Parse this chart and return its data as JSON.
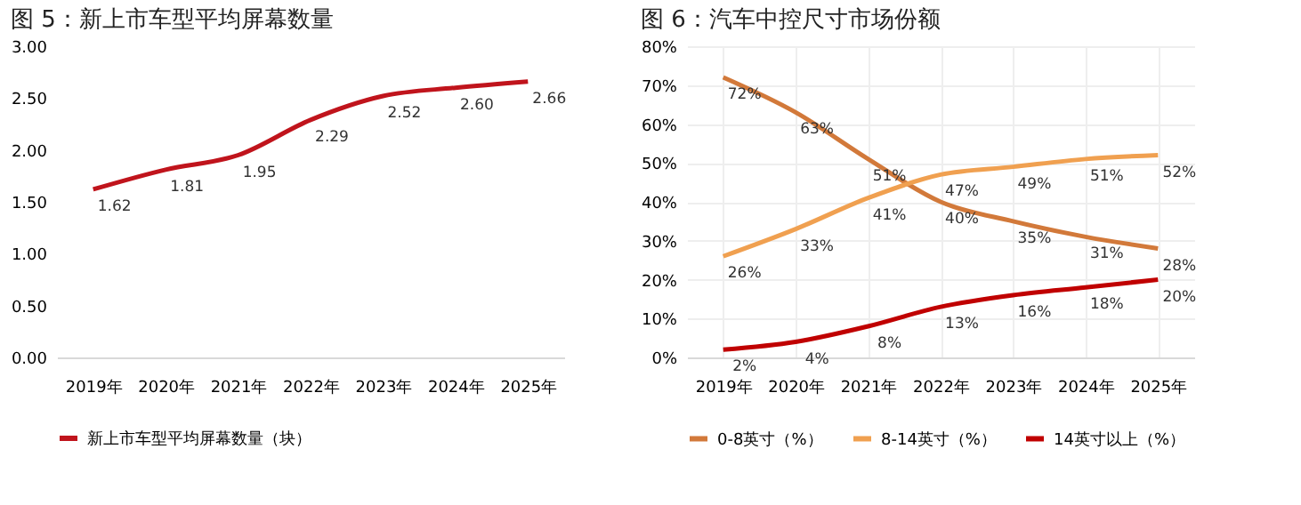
{
  "chart_data": [
    {
      "type": "line",
      "title": "图 5：新上市车型平均屏幕数量",
      "categories": [
        "2019年",
        "2020年",
        "2021年",
        "2022年",
        "2023年",
        "2024年",
        "2025年"
      ],
      "series": [
        {
          "name": "新上市车型平均屏幕数量（块）",
          "color": "#c0141c",
          "values": [
            1.62,
            1.81,
            1.95,
            2.29,
            2.52,
            2.6,
            2.66
          ],
          "value_labels": [
            "1.62",
            "1.81",
            "1.95",
            "2.29",
            "2.52",
            "2.60",
            "2.66"
          ]
        }
      ],
      "ylim": [
        0,
        3
      ],
      "yticks": [
        {
          "value": 0,
          "label": "0.00"
        },
        {
          "value": 0.5,
          "label": "0.50"
        },
        {
          "value": 1,
          "label": "1.00"
        },
        {
          "value": 1.5,
          "label": "1.50"
        },
        {
          "value": 2,
          "label": "2.00"
        },
        {
          "value": 2.5,
          "label": "2.50"
        },
        {
          "value": 3,
          "label": "3.00"
        }
      ],
      "grid": false,
      "legend": "bottom",
      "marker": "none",
      "line_style": "solid"
    },
    {
      "type": "line",
      "title": "图 6：汽车中控尺寸市场份额",
      "categories": [
        "2019年",
        "2020年",
        "2021年",
        "2022年",
        "2023年",
        "2024年",
        "2025年"
      ],
      "series": [
        {
          "name": "0-8英寸（%）",
          "color": "#d2793a",
          "values": [
            72,
            63,
            51,
            40,
            35,
            31,
            28
          ],
          "value_labels": [
            "72%",
            "63%",
            "51%",
            "40%",
            "35%",
            "31%",
            "28%"
          ]
        },
        {
          "name": "8-14英寸（%）",
          "color": "#f0a050",
          "values": [
            26,
            33,
            41,
            47,
            49,
            51,
            52
          ],
          "value_labels": [
            "26%",
            "33%",
            "41%",
            "47%",
            "49%",
            "51%",
            "52%"
          ]
        },
        {
          "name": "14英寸以上（%）",
          "color": "#c00000",
          "values": [
            2,
            4,
            8,
            13,
            16,
            18,
            20
          ],
          "value_labels": [
            "2%",
            "4%",
            "8%",
            "13%",
            "16%",
            "18%",
            "20%"
          ]
        }
      ],
      "ylim": [
        0,
        80
      ],
      "yticks": [
        {
          "value": 0,
          "label": "0%"
        },
        {
          "value": 10,
          "label": "10%"
        },
        {
          "value": 20,
          "label": "20%"
        },
        {
          "value": 30,
          "label": "30%"
        },
        {
          "value": 40,
          "label": "40%"
        },
        {
          "value": 50,
          "label": "50%"
        },
        {
          "value": 60,
          "label": "60%"
        },
        {
          "value": 70,
          "label": "70%"
        },
        {
          "value": 80,
          "label": "80%"
        }
      ],
      "grid": true,
      "legend": "bottom",
      "marker": "none",
      "line_style": "solid"
    }
  ]
}
